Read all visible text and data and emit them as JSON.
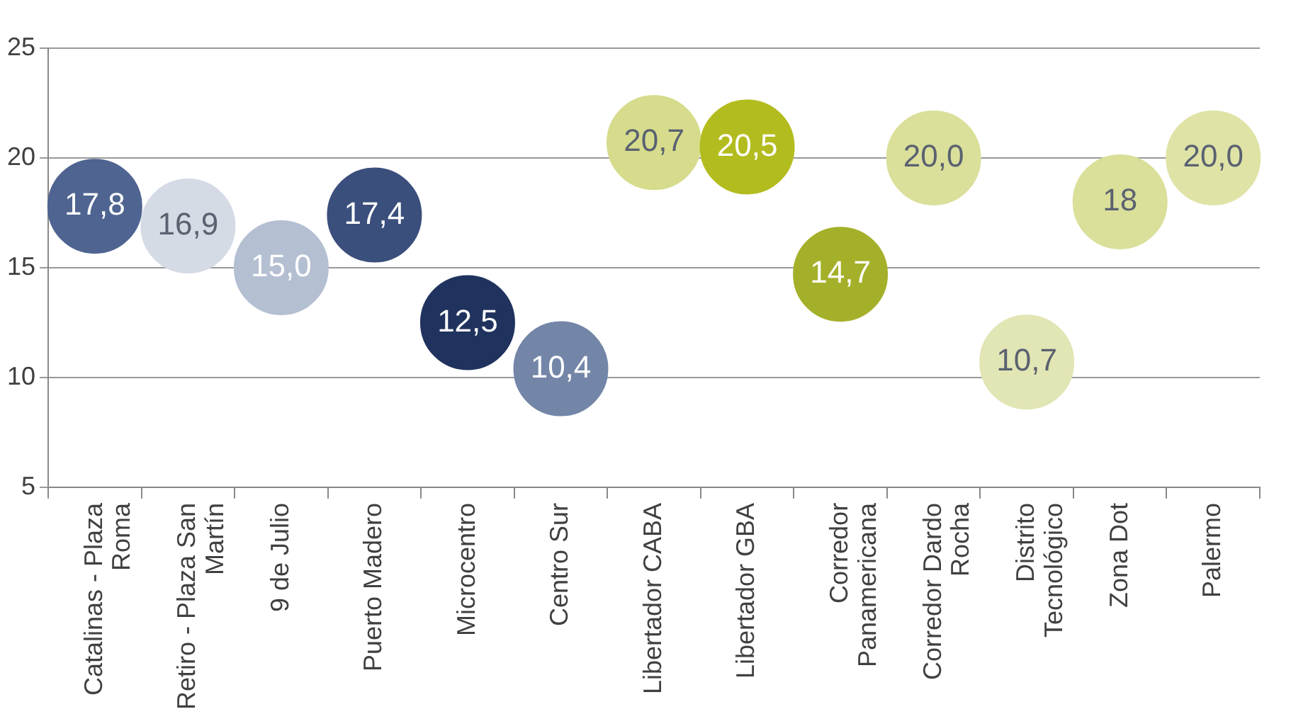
{
  "chart_data": {
    "type": "scatter",
    "categories": [
      "Catalinas - Plaza Roma",
      "Retiro - Plaza San Martín",
      "9 de Julio",
      "Puerto Madero",
      "Microcentro",
      "Centro Sur",
      "Libertador CABA",
      "Libertador GBA",
      "Corredor Panamericana",
      "Corredor Dardo Rocha",
      "Distrito Tecnológico",
      "Zona Dot",
      "Palermo"
    ],
    "values": [
      17.8,
      16.9,
      15.0,
      17.4,
      12.5,
      10.4,
      20.7,
      20.5,
      14.7,
      20.0,
      10.7,
      18,
      20.0
    ],
    "value_labels": [
      "17,8",
      "16,9",
      "15,0",
      "17,4",
      "12,5",
      "10,4",
      "20,7",
      "20,5",
      "14,7",
      "20,0",
      "10,7",
      "18",
      "20,0"
    ],
    "colors": [
      "#4f6490",
      "#d5dbe5",
      "#b4bfd2",
      "#3b4f7c",
      "#20335e",
      "#7386a8",
      "#d6dc8c",
      "#b3bc1e",
      "#a5b02a",
      "#dadf9a",
      "#e2e5b4",
      "#dadf9a",
      "#dfe3a6"
    ],
    "marker": "circle",
    "ylim": [
      5,
      25
    ],
    "yticks": [
      5,
      10,
      15,
      20,
      25
    ],
    "grid": "y",
    "legend": false
  }
}
